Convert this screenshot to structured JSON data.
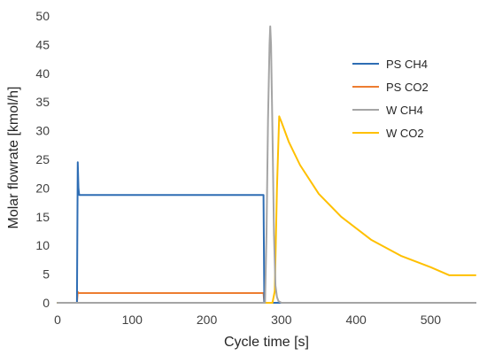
{
  "chart_data": {
    "type": "line",
    "xlabel": "Cycle time [s]",
    "ylabel": "Molar flowrate [kmol/h]",
    "xlim": [
      0,
      560
    ],
    "ylim": [
      0,
      50
    ],
    "xticks": [
      0,
      100,
      200,
      300,
      400,
      500
    ],
    "yticks": [
      0,
      5,
      10,
      15,
      20,
      25,
      30,
      35,
      40,
      45,
      50
    ],
    "grid": false,
    "legend_position": "top-right",
    "series": [
      {
        "name": "PS CH4",
        "color": "#2e6db4",
        "x": [
          0,
          26,
          27,
          28,
          29,
          30,
          276,
          277,
          278,
          560
        ],
        "y": [
          0,
          0,
          24.5,
          20,
          18.8,
          18.8,
          18.8,
          0,
          0,
          0
        ]
      },
      {
        "name": "PS CO2",
        "color": "#ed7d31",
        "x": [
          0,
          26,
          27,
          28,
          276,
          277,
          278,
          560
        ],
        "y": [
          0,
          0,
          1.9,
          1.7,
          1.7,
          0,
          0,
          0
        ]
      },
      {
        "name": "W CH4",
        "color": "#a5a5a5",
        "x": [
          0,
          278,
          280,
          282,
          284,
          285,
          286,
          288,
          290,
          292,
          294,
          296,
          300,
          560
        ],
        "y": [
          0,
          0,
          12,
          32,
          45,
          48.2,
          45,
          30,
          12,
          3,
          1,
          0.3,
          0,
          0
        ]
      },
      {
        "name": "W CO2",
        "color": "#ffc000",
        "x": [
          0,
          288,
          291,
          294,
          297,
          300,
          310,
          325,
          350,
          380,
          420,
          460,
          500,
          525,
          560
        ],
        "y": [
          0,
          0,
          2,
          20,
          32.5,
          31.5,
          28,
          24,
          19,
          15,
          11,
          8.2,
          6.2,
          4.8,
          4.8
        ]
      }
    ]
  }
}
